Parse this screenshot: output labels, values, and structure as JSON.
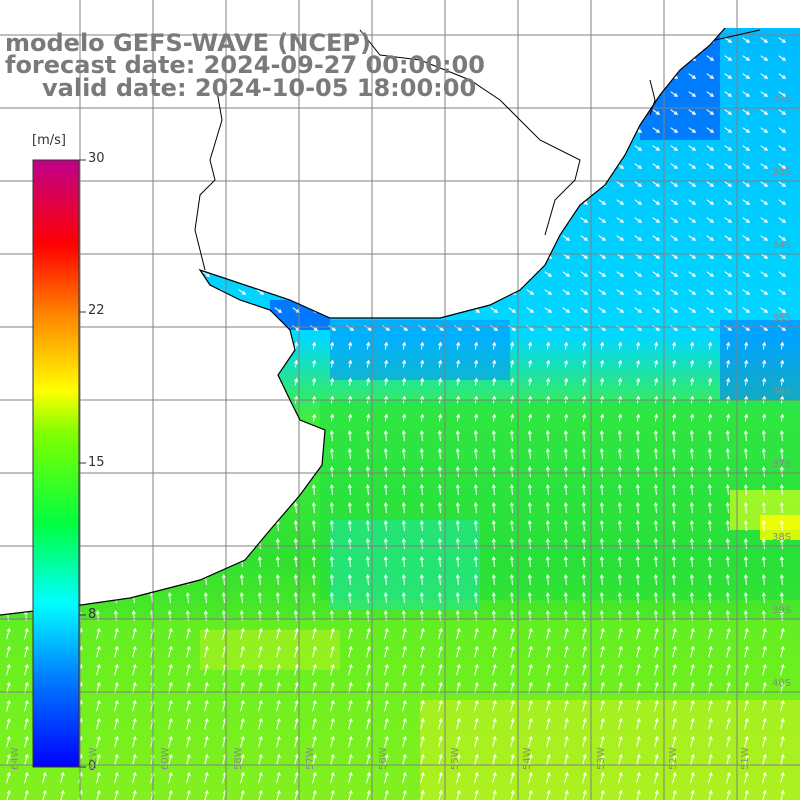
{
  "title": {
    "line1": "modelo GEFS-WAVE (NCEP)",
    "line2": "forecast date: 2024-09-27 00:00:00",
    "line3": "valid date: 2024-10-05 18:00:00"
  },
  "colorbar": {
    "unit": "[m/s]",
    "ticks": [
      "30",
      "22",
      "15",
      "8",
      "0"
    ],
    "colors": [
      "#0000ff",
      "#0090ff",
      "#00e5ff",
      "#00ff40",
      "#80ff00",
      "#ffff00",
      "#ff8000",
      "#ff0000",
      "#c00080"
    ]
  },
  "axes": {
    "lon_ticks": [
      "64W",
      "62W",
      "60W",
      "58W",
      "57W",
      "56W",
      "55W",
      "54W",
      "53W",
      "52W",
      "51W"
    ],
    "lat_ticks": [
      "32S",
      "33S",
      "34S",
      "35S",
      "36S",
      "37S",
      "38S",
      "39S",
      "40S"
    ]
  },
  "colors": {
    "land": "#ffffff",
    "coast": "#000000",
    "grid": "#808080",
    "arrow": "#ffffff"
  }
}
